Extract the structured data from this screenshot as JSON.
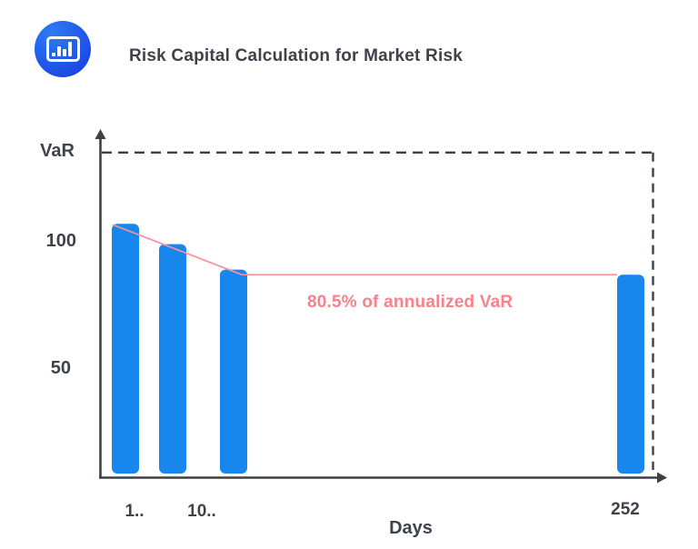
{
  "header": {
    "title": "Risk Capital Calculation for Market Risk",
    "logo_icon": "bar-chart-icon"
  },
  "chart_data": {
    "type": "bar",
    "title": "Risk Capital Calculation for Market Risk",
    "ylabel": "VaR",
    "xlabel": "Days",
    "categories": [
      "1..",
      "10..",
      "",
      "252"
    ],
    "values": [
      106,
      98,
      88,
      86
    ],
    "y_tick_labels": [
      "100",
      "50"
    ],
    "y_tick_values": [
      100,
      50
    ],
    "x_tick_labels": [
      "1..",
      "10..",
      "252"
    ],
    "annotation": "80.5% of annualized VaR",
    "annualized_var_level": 134,
    "pink_line_level": 86,
    "ylim": [
      0,
      140
    ],
    "grid": false,
    "legend": "none",
    "colors": {
      "bar": "#1787EE",
      "annotation_text": "#F9818A",
      "annotation_line": "#F9909A",
      "axis": "#3C4047",
      "text": "#3E434B"
    }
  }
}
